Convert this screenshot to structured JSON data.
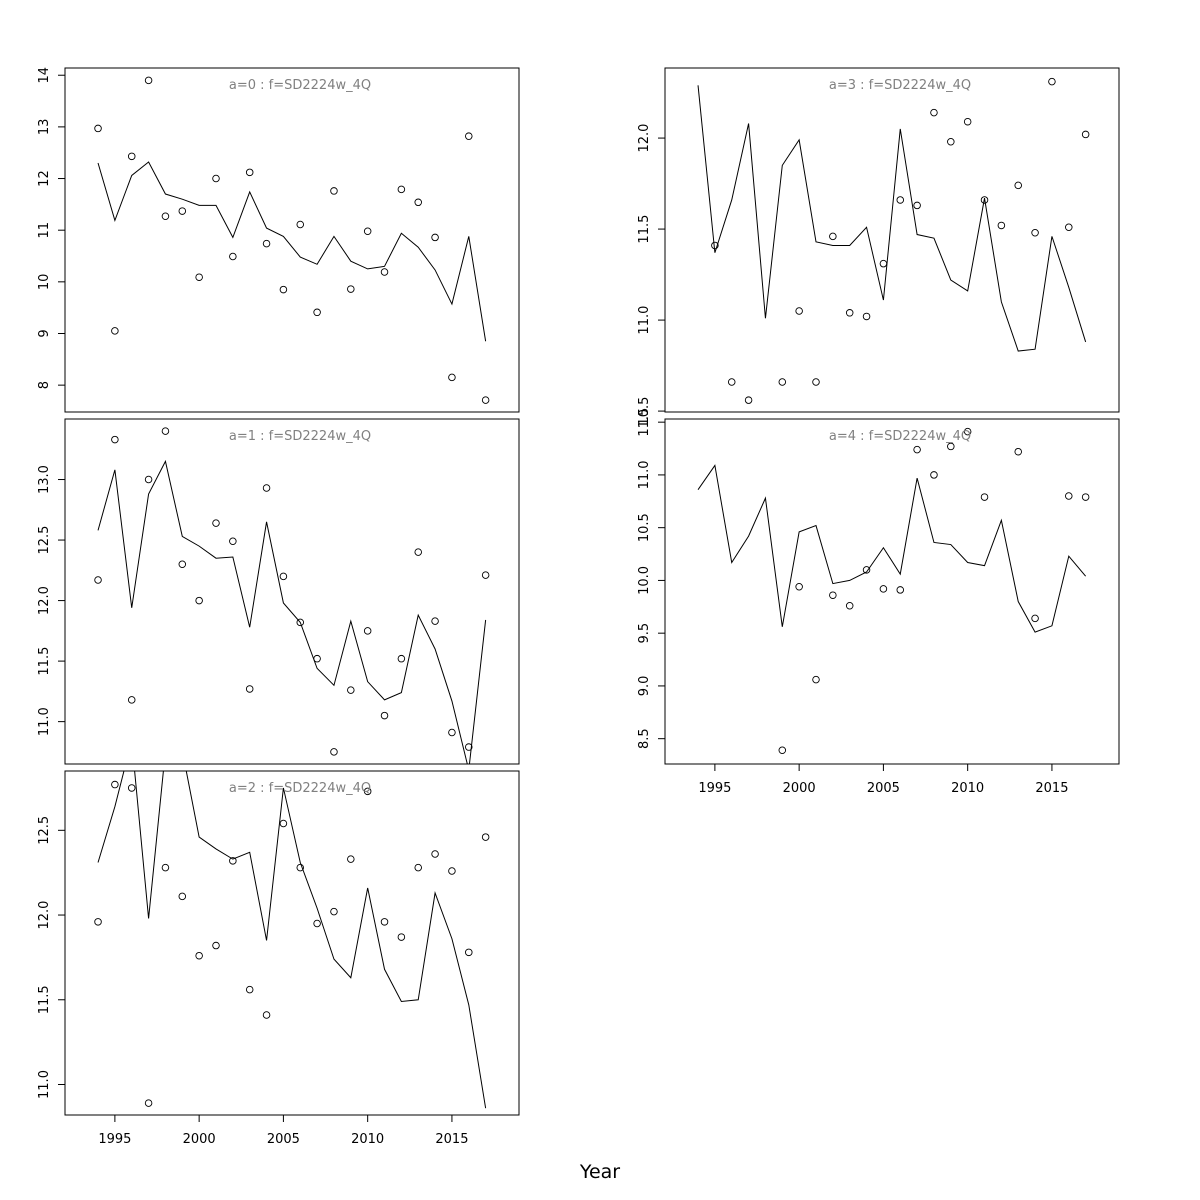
{
  "xlabel": "Year",
  "chart_data": [
    {
      "type": "line",
      "title": "a=0 : f=SD2224w_4Q",
      "x": [
        1994,
        1995,
        1996,
        1997,
        1998,
        1999,
        2000,
        2001,
        2002,
        2003,
        2004,
        2005,
        2006,
        2007,
        2008,
        2009,
        2010,
        2011,
        2012,
        2013,
        2014,
        2015,
        2016,
        2017
      ],
      "series": [
        {
          "style": "points",
          "color": "#000000",
          "values": [
            12.97,
            9.05,
            12.43,
            13.9,
            11.27,
            11.37,
            10.09,
            12.0,
            10.49,
            12.12,
            10.74,
            9.85,
            11.11,
            9.41,
            11.76,
            9.86,
            10.98,
            10.19,
            11.79,
            11.54,
            10.86,
            8.15,
            12.82,
            7.71
          ]
        },
        {
          "style": "line",
          "color": "#000000",
          "values": [
            12.3,
            11.19,
            12.06,
            12.32,
            11.7,
            11.6,
            11.48,
            11.48,
            10.86,
            11.74,
            11.04,
            10.88,
            10.48,
            10.34,
            10.88,
            10.4,
            10.25,
            10.3,
            10.94,
            10.67,
            10.23,
            9.57,
            10.88,
            8.85
          ]
        }
      ],
      "xlim": [
        1992.04,
        2018.98
      ],
      "ylim": [
        7.48,
        14.14
      ],
      "yticks": [
        8,
        9,
        10,
        11,
        12,
        13,
        14
      ]
    },
    {
      "type": "line",
      "title": "a=1 : f=SD2224w_4Q",
      "x": [
        1994,
        1995,
        1996,
        1997,
        1998,
        1999,
        2000,
        2001,
        2002,
        2003,
        2004,
        2005,
        2006,
        2007,
        2008,
        2009,
        2010,
        2011,
        2012,
        2013,
        2014,
        2015,
        2016,
        2017
      ],
      "series": [
        {
          "style": "points",
          "color": "#000000",
          "values": [
            12.17,
            13.33,
            11.18,
            13.0,
            13.4,
            12.3,
            12.0,
            12.64,
            12.49,
            11.27,
            12.93,
            12.2,
            11.82,
            11.52,
            10.75,
            11.26,
            11.75,
            11.05,
            11.52,
            12.4,
            11.83,
            10.91,
            10.79,
            12.21
          ]
        },
        {
          "style": "line",
          "color": "#000000",
          "values": [
            12.58,
            13.08,
            11.94,
            12.88,
            13.15,
            12.53,
            12.45,
            12.35,
            12.36,
            11.78,
            12.65,
            11.98,
            11.82,
            11.44,
            11.3,
            11.83,
            11.33,
            11.18,
            11.24,
            11.88,
            11.6,
            11.17,
            10.6,
            11.84
          ]
        }
      ],
      "xlim": [
        1992.04,
        2018.98
      ],
      "ylim": [
        10.65,
        13.5
      ],
      "yticks": [
        {
          "value": 11,
          "label": "11.0"
        },
        11.5,
        {
          "value": 12,
          "label": "12.0"
        },
        12.5,
        {
          "value": 13,
          "label": "13.0"
        }
      ]
    },
    {
      "type": "line",
      "title": "a=2 : f=SD2224w_4Q",
      "x": [
        1994,
        1995,
        1996,
        1997,
        1998,
        1999,
        2000,
        2001,
        2002,
        2003,
        2004,
        2005,
        2006,
        2007,
        2008,
        2009,
        2010,
        2011,
        2012,
        2013,
        2014,
        2015,
        2016,
        2017
      ],
      "series": [
        {
          "style": "points",
          "color": "#000000",
          "values": [
            11.96,
            12.77,
            12.75,
            10.89,
            12.28,
            12.11,
            11.76,
            11.82,
            12.32,
            11.56,
            11.41,
            12.54,
            12.28,
            11.95,
            12.02,
            12.33,
            12.73,
            11.96,
            11.87,
            12.28,
            12.36,
            12.26,
            11.78,
            12.46
          ]
        },
        {
          "style": "line",
          "color": "#000000",
          "values": [
            12.31,
            12.64,
            13.03,
            11.98,
            12.97,
            12.97,
            12.46,
            12.39,
            12.33,
            12.37,
            11.85,
            12.75,
            12.31,
            12.04,
            11.74,
            11.63,
            12.16,
            11.68,
            11.49,
            11.5,
            12.13,
            11.86,
            11.47,
            10.86
          ]
        }
      ],
      "xlim": [
        1992.04,
        2018.98
      ],
      "ylim": [
        10.82,
        12.85
      ],
      "xticks": [
        1995,
        2000,
        2005,
        2010,
        2015
      ],
      "yticks": [
        {
          "value": 11,
          "label": "11.0"
        },
        11.5,
        {
          "value": 12,
          "label": "12.0"
        },
        12.5
      ]
    },
    {
      "type": "line",
      "title": "a=3 : f=SD2224w_4Q",
      "x": [
        1994,
        1995,
        1996,
        1997,
        1998,
        1999,
        2000,
        2001,
        2002,
        2003,
        2004,
        2005,
        2006,
        2007,
        2008,
        2009,
        2010,
        2011,
        2012,
        2013,
        2014,
        2015,
        2016,
        2017
      ],
      "series": [
        {
          "style": "points",
          "color": "#000000",
          "values": [
            null,
            11.41,
            10.66,
            10.56,
            null,
            10.66,
            11.05,
            10.66,
            11.46,
            11.04,
            11.02,
            11.31,
            11.66,
            11.63,
            12.14,
            11.98,
            12.09,
            11.66,
            11.52,
            11.74,
            11.48,
            12.31,
            11.51,
            12.02
          ]
        },
        {
          "style": "line",
          "color": "#000000",
          "values": [
            12.29,
            11.37,
            11.66,
            12.08,
            11.01,
            11.85,
            11.99,
            11.43,
            11.41,
            11.41,
            11.51,
            11.11,
            12.05,
            11.47,
            11.45,
            11.22,
            11.16,
            11.67,
            11.1,
            10.83,
            10.84,
            11.46,
            11.18,
            10.88
          ]
        }
      ],
      "xlim": [
        1992.04,
        2018.98
      ],
      "ylim": [
        10.495,
        12.385
      ],
      "yticks": [
        10.5,
        {
          "value": 11,
          "label": "11.0"
        },
        11.5,
        {
          "value": 12,
          "label": "12.0"
        }
      ]
    },
    {
      "type": "line",
      "title": "a=4 : f=SD2224w_4Q",
      "x": [
        1994,
        1995,
        1996,
        1997,
        1998,
        1999,
        2000,
        2001,
        2002,
        2003,
        2004,
        2005,
        2006,
        2007,
        2008,
        2009,
        2010,
        2011,
        2012,
        2013,
        2014,
        2015,
        2016,
        2017
      ],
      "series": [
        {
          "style": "points",
          "color": "#000000",
          "values": [
            null,
            null,
            null,
            null,
            null,
            8.39,
            9.94,
            9.06,
            9.86,
            9.76,
            10.1,
            9.92,
            9.91,
            11.24,
            11.0,
            11.27,
            11.41,
            10.79,
            null,
            11.22,
            9.64,
            null,
            10.8,
            10.79
          ]
        },
        {
          "style": "line",
          "color": "#000000",
          "values": [
            10.86,
            11.09,
            10.17,
            10.42,
            10.78,
            9.56,
            10.46,
            10.52,
            9.97,
            10.0,
            10.08,
            10.31,
            10.06,
            10.97,
            10.36,
            10.34,
            10.17,
            10.14,
            10.57,
            9.8,
            9.51,
            9.57,
            10.23,
            10.04
          ]
        }
      ],
      "xlim": [
        1992.04,
        2018.98
      ],
      "ylim": [
        8.26,
        11.53
      ],
      "xticks": [
        1995,
        2000,
        2005,
        2010,
        2015
      ],
      "yticks": [
        8.5,
        {
          "value": 9,
          "label": "9.0"
        },
        9.5,
        {
          "value": 10,
          "label": "10.0"
        },
        10.5,
        {
          "value": 11,
          "label": "11.0"
        },
        11.5
      ]
    }
  ]
}
